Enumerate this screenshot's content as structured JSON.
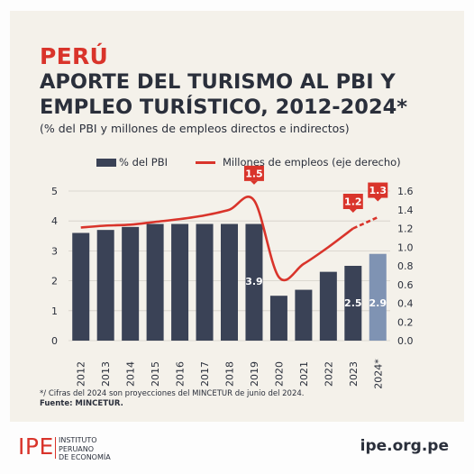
{
  "header": {
    "country": "PERÚ",
    "title_line1": "APORTE DEL TURISMO AL PBI Y",
    "title_line2": "EMPLEO TURÍSTICO, 2012-2024*",
    "subtitle": "(% del PBI y millones de empleos directos e indirectos)"
  },
  "legend": {
    "bars_label": "% del PBI",
    "line_label": "Millones de empleos (eje derecho)"
  },
  "colors": {
    "bar": "#3a4256",
    "bar_projection": "#7f93b3",
    "line": "#d9342b",
    "text": "#2a2f3b",
    "grid": "#d3d0c8"
  },
  "chart_data": {
    "type": "bar",
    "categories": [
      "2012",
      "2013",
      "2014",
      "2015",
      "2016",
      "2017",
      "2018",
      "2019",
      "2020",
      "2021",
      "2022",
      "2023",
      "2024*"
    ],
    "series": [
      {
        "name": "% del PBI",
        "type": "bar",
        "axis": "left",
        "values": [
          3.6,
          3.7,
          3.8,
          3.9,
          3.9,
          3.9,
          3.9,
          3.9,
          1.5,
          1.7,
          2.3,
          2.5,
          2.9
        ]
      },
      {
        "name": "Millones de empleos (eje derecho)",
        "type": "line",
        "axis": "right",
        "values": [
          1.21,
          1.23,
          1.24,
          1.27,
          1.3,
          1.34,
          1.4,
          1.5,
          0.68,
          0.82,
          1.0,
          1.2,
          1.32
        ]
      }
    ],
    "projected_category": "2024*",
    "left_axis": {
      "ylim": [
        0,
        5
      ],
      "ticks": [
        "0",
        "1",
        "2",
        "3",
        "4",
        "5"
      ]
    },
    "right_axis": {
      "ylim": [
        0,
        1.6
      ],
      "ticks": [
        "0.0",
        "0.2",
        "0.4",
        "0.6",
        "0.8",
        "1.0",
        "1.2",
        "1.4",
        "1.6"
      ]
    },
    "bar_labels": [
      {
        "category": "2019",
        "text": "3.9"
      },
      {
        "category": "2023",
        "text": "2.5"
      },
      {
        "category": "2024*",
        "text": "2.9"
      }
    ],
    "line_callouts": [
      {
        "category": "2019",
        "text": "1.5"
      },
      {
        "category": "2023",
        "text": "1.2"
      },
      {
        "category": "2024*",
        "text": "1.3"
      }
    ]
  },
  "footnote": "*/ Cifras del 2024 son proyecciones del MINCETUR de junio del 2024.",
  "source": "Fuente: MINCETUR.",
  "footer": {
    "logo_mark": "IPE",
    "logo_line1": "INSTITUTO",
    "logo_line2": "PERUANO",
    "logo_line3": "DE ECONOMÍA",
    "website": "ipe.org.pe"
  }
}
